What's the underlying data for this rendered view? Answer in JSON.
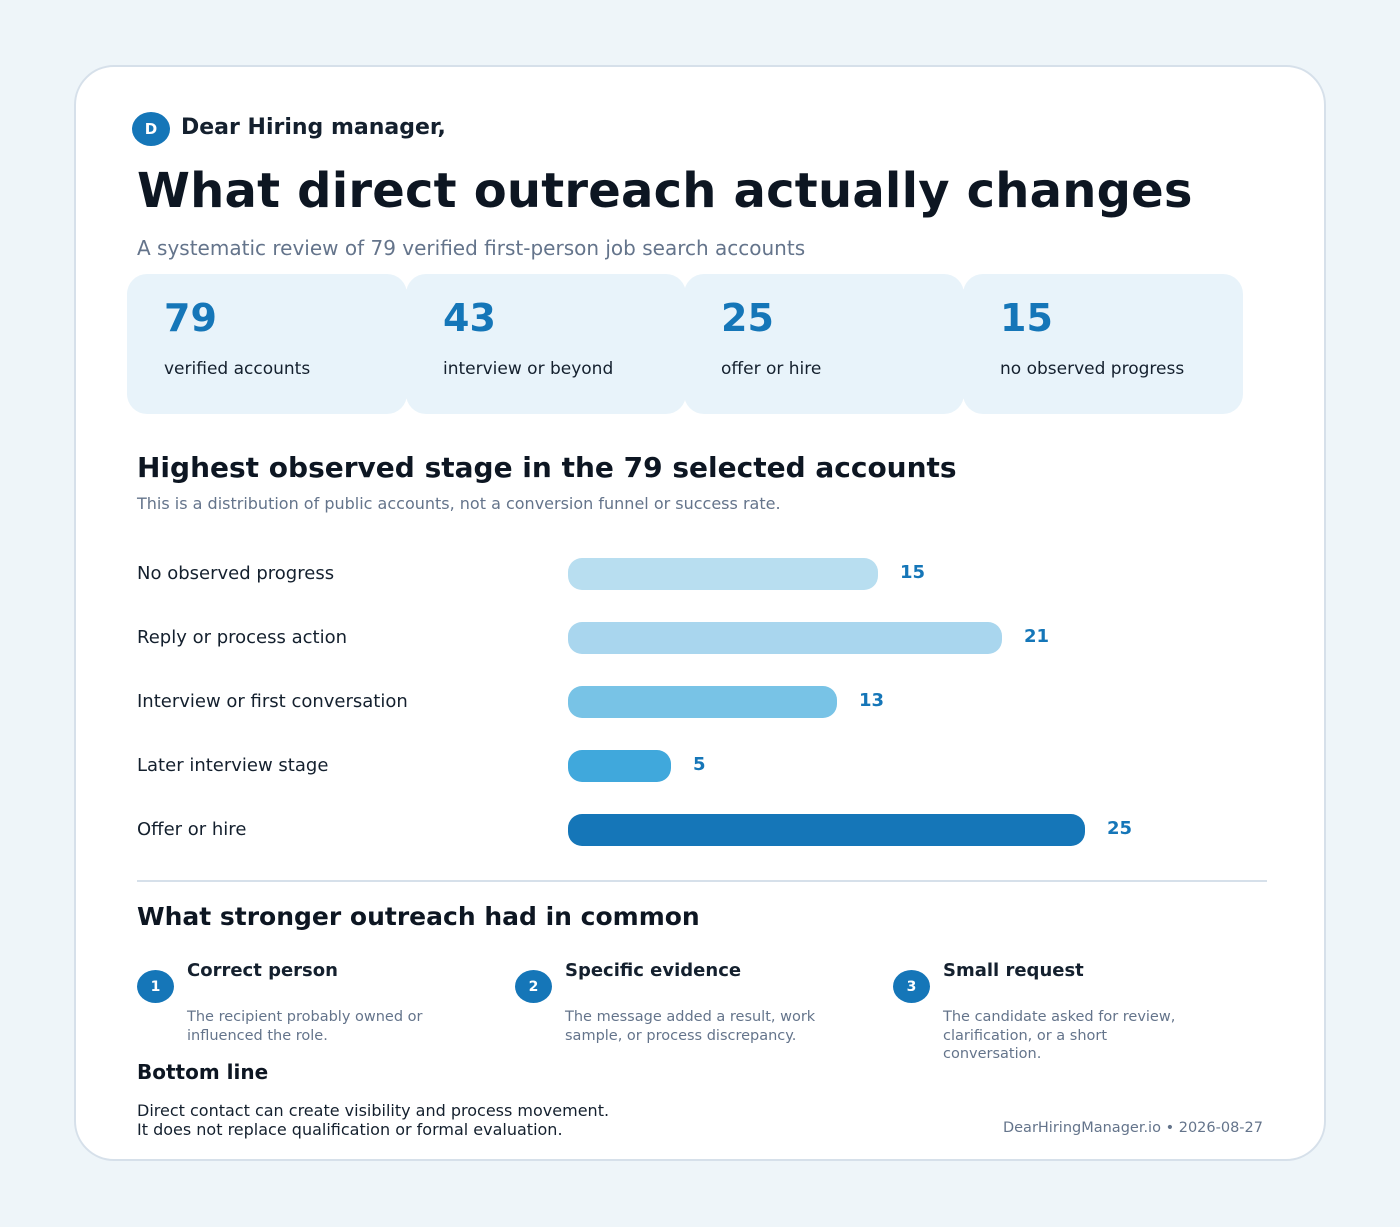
{
  "greeting": {
    "initial": "D",
    "text": "Dear Hiring manager,"
  },
  "title": "What direct outreach actually changes",
  "subtitle": "A systematic review of 79 verified first-person job search accounts",
  "stats": [
    {
      "value": "79",
      "label": "verified accounts"
    },
    {
      "value": "43",
      "label": "interview or beyond"
    },
    {
      "value": "25",
      "label": "offer or hire"
    },
    {
      "value": "15",
      "label": "no observed progress"
    }
  ],
  "chart_heading": "Highest observed stage in the 79 selected accounts",
  "chart_note": "This is a distribution of public accounts, not a conversion funnel or success rate.",
  "chart_data": {
    "type": "bar",
    "orientation": "horizontal",
    "categories": [
      "No observed progress",
      "Reply or process action",
      "Interview or first conversation",
      "Later interview stage",
      "Offer or hire"
    ],
    "values": [
      15,
      21,
      13,
      5,
      25
    ],
    "colors": [
      "#b8def0",
      "#a9d6ee",
      "#78c3e6",
      "#40a8dc",
      "#1576b8"
    ],
    "value_label_color": "#1576b8",
    "xlim": [
      0,
      25
    ],
    "grid": false
  },
  "common": {
    "heading": "What stronger outreach had in common",
    "points": [
      {
        "num": "1",
        "title": "Correct person",
        "body": "The recipient probably owned or influenced the role."
      },
      {
        "num": "2",
        "title": "Specific evidence",
        "body": "The message added a result, work sample, or process discrepancy."
      },
      {
        "num": "3",
        "title": "Small request",
        "body": "The candidate asked for review, clarification, or a short conversation."
      }
    ]
  },
  "bottom": {
    "title": "Bottom line",
    "lines": [
      "Direct contact can create visibility and process movement.",
      "It does not replace qualification or formal evaluation."
    ]
  },
  "footer": "DearHiringManager.io  •  2026-08-27",
  "colors": {
    "accent": "#1576b8",
    "background": "#eef5f9",
    "stat_card": "#e8f3fa"
  }
}
